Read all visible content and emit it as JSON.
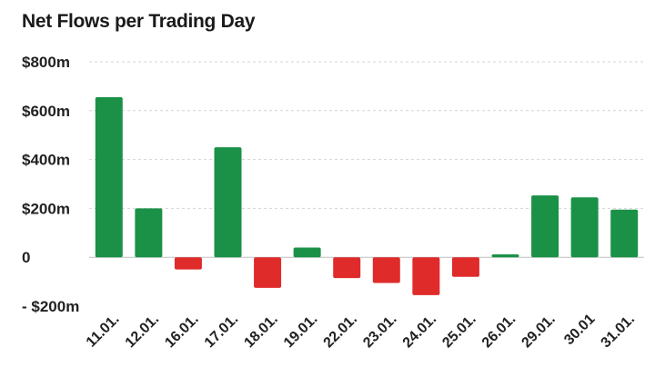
{
  "colors": {
    "positive": "#1a9147",
    "negative": "#e02b2b",
    "grid": "#d4d4d4",
    "zero_line": "#bfbfbf",
    "text": "#1a1a1a"
  },
  "chart_data": {
    "type": "bar",
    "title": "Net Flows per Trading Day",
    "xlabel": "",
    "ylabel": "",
    "categories": [
      "11.01.",
      "12.01.",
      "16.01.",
      "17.01.",
      "18.01.",
      "19.01.",
      "22.01.",
      "23.01.",
      "24.01.",
      "25.01.",
      "26.01.",
      "29.01.",
      "30.01",
      "31.01."
    ],
    "values": [
      655,
      200,
      -50,
      450,
      -125,
      40,
      -85,
      -105,
      -155,
      -80,
      12,
      253,
      245,
      195
    ],
    "ylim": [
      -200,
      800
    ],
    "yticks": [
      {
        "value": 800,
        "label": "$800m"
      },
      {
        "value": 600,
        "label": "$600m"
      },
      {
        "value": 400,
        "label": "$400m"
      },
      {
        "value": 200,
        "label": "$200m"
      },
      {
        "value": 0,
        "label": "0"
      },
      {
        "value": -200,
        "label": "- $200m"
      }
    ],
    "grid": true,
    "legend": "none"
  }
}
